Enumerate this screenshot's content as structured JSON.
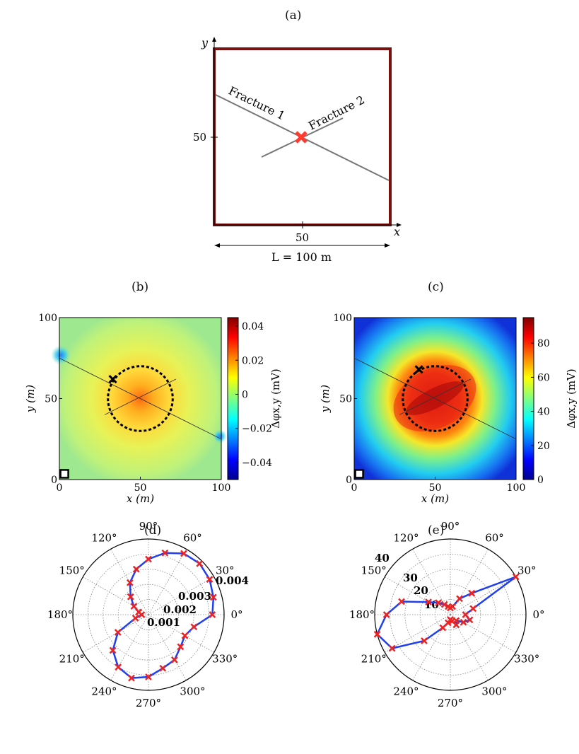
{
  "panels": {
    "a": "(a)",
    "b": "(b)",
    "c": "(c)",
    "d": "(d)",
    "e": "(e)"
  },
  "schematic": {
    "x_axis": "x",
    "y_axis": "y",
    "tick_x": "50",
    "tick_y": "50",
    "length_label": "L = 100 m",
    "fracture1": "Fracture 1",
    "fracture2": "Fracture 2",
    "border_color": "#7a1111",
    "marker_color": "#ff3b2f"
  },
  "chart_data": [
    {
      "id": "b",
      "type": "heatmap",
      "title": "(b)",
      "xlabel": "x (m)",
      "ylabel": "y (m)",
      "xlim": [
        0,
        100
      ],
      "ylim": [
        0,
        100
      ],
      "xticks": [
        "0",
        "50",
        "100"
      ],
      "yticks": [
        "0",
        "50",
        "100"
      ],
      "colorbar_label": "Δφx,y (mV)",
      "colorbar_range": [
        -0.05,
        0.045
      ],
      "colorbar_ticks": [
        "0.04",
        "0.02",
        "0",
        "−0.02",
        "−0.04"
      ],
      "circle_center": [
        50,
        50
      ],
      "circle_radius": 20,
      "x_marker": [
        33,
        62
      ],
      "source_marker": [
        2,
        2
      ],
      "fracture_lines": [
        [
          [
            0,
            75
          ],
          [
            100,
            25
          ]
        ],
        [
          [
            28,
            40
          ],
          [
            72,
            62
          ]
        ]
      ]
    },
    {
      "id": "c",
      "type": "heatmap",
      "title": "(c)",
      "xlabel": "x (m)",
      "ylabel": "y (m)",
      "xlim": [
        0,
        100
      ],
      "ylim": [
        0,
        100
      ],
      "xticks": [
        "0",
        "50",
        "100"
      ],
      "yticks": [
        "0",
        "50",
        "100"
      ],
      "colorbar_label": "Δφx,y (mV)",
      "colorbar_range": [
        0,
        95
      ],
      "colorbar_ticks": [
        "80",
        "60",
        "40",
        "20",
        "0"
      ],
      "circle_center": [
        50,
        50
      ],
      "circle_radius": 20,
      "x_marker": [
        40,
        68
      ],
      "source_marker": [
        2,
        2
      ],
      "fracture_lines": [
        [
          [
            0,
            75
          ],
          [
            100,
            25
          ]
        ],
        [
          [
            28,
            40
          ],
          [
            72,
            62
          ]
        ]
      ]
    },
    {
      "id": "d",
      "type": "polar",
      "title": "(d)",
      "rmax": 0.0045,
      "radial_ticks": [
        "0.001",
        "0.002",
        "0.003",
        "0.004"
      ],
      "angle_labels": [
        "0°",
        "30°",
        "60°",
        "90°",
        "120°",
        "150°",
        "180°",
        "210°",
        "240°",
        "270°",
        "300°",
        "330°"
      ],
      "theta_deg": [
        0,
        15,
        30,
        45,
        60,
        75,
        90,
        105,
        120,
        135,
        150,
        165,
        180,
        195,
        210,
        225,
        240,
        255,
        270,
        285,
        300,
        315,
        330,
        345
      ],
      "r": [
        0.0038,
        0.004,
        0.0042,
        0.0043,
        0.0042,
        0.0038,
        0.0033,
        0.0028,
        0.0022,
        0.0015,
        0.001,
        0.0006,
        0.0004,
        0.0008,
        0.0021,
        0.003,
        0.0036,
        0.0039,
        0.0037,
        0.0033,
        0.0031,
        0.0027,
        0.0025,
        0.0028
      ],
      "line_color": "#1f3ff0",
      "marker_color": "#ee2222"
    },
    {
      "id": "e",
      "type": "polar",
      "title": "(e)",
      "rmax": 45,
      "radial_ticks": [
        "10",
        "20",
        "30",
        "40"
      ],
      "angle_labels": [
        "0°",
        "30°",
        "60°",
        "90°",
        "120°",
        "150°",
        "180°",
        "210°",
        "240°",
        "270°",
        "300°",
        "330°"
      ],
      "theta_deg": [
        0,
        15,
        30,
        45,
        60,
        75,
        90,
        105,
        120,
        135,
        150,
        165,
        180,
        195,
        210,
        225,
        240,
        255,
        270,
        285,
        300,
        315,
        330,
        345
      ],
      "r": [
        9,
        14,
        45,
        18,
        11,
        5,
        4,
        5,
        7,
        10,
        15,
        30,
        38,
        45,
        40,
        22,
        9,
        5,
        3,
        4,
        7,
        5,
        9,
        12
      ],
      "line_color": "#1f3ff0",
      "marker_color": "#ee2222"
    }
  ]
}
